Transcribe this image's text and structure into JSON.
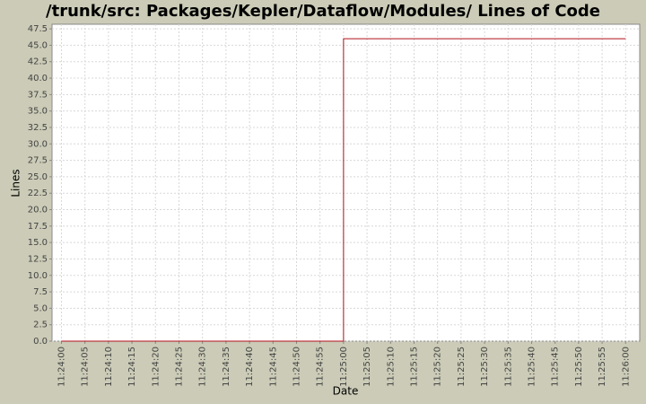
{
  "chart_data": {
    "type": "line",
    "title": "/trunk/src: Packages/Kepler/Dataflow/Modules/ Lines of Code",
    "x_label": "Date",
    "y_label": "Lines",
    "x": [
      "11:24:00",
      "11:25:00",
      "11:25:00",
      "11:26:00"
    ],
    "series": [
      {
        "name": "Lines",
        "color": "#b0121b",
        "values": [
          0,
          0,
          46,
          46
        ]
      }
    ],
    "xlim": [
      "11:23:58",
      "11:26:03"
    ],
    "xticks": [
      "11:24:00",
      "11:24:05",
      "11:24:10",
      "11:24:15",
      "11:24:20",
      "11:24:25",
      "11:24:30",
      "11:24:35",
      "11:24:40",
      "11:24:45",
      "11:24:50",
      "11:24:55",
      "11:25:00",
      "11:25:05",
      "11:25:10",
      "11:25:15",
      "11:25:20",
      "11:25:25",
      "11:25:30",
      "11:25:35",
      "11:25:40",
      "11:25:45",
      "11:25:50",
      "11:25:55",
      "11:26:00"
    ],
    "ylim": [
      0,
      48.2
    ],
    "yticks": [
      {
        "value": 0,
        "label": "0.0"
      },
      {
        "value": 2.5,
        "label": "2.5"
      },
      {
        "value": 5,
        "label": "5.0"
      },
      {
        "value": 7.5,
        "label": "7.5"
      },
      {
        "value": 10,
        "label": "10.0"
      },
      {
        "value": 12.5,
        "label": "12.5"
      },
      {
        "value": 15,
        "label": "15.0"
      },
      {
        "value": 17.5,
        "label": "17.5"
      },
      {
        "value": 20,
        "label": "20.0"
      },
      {
        "value": 22.5,
        "label": "22.5"
      },
      {
        "value": 25,
        "label": "25.0"
      },
      {
        "value": 27.5,
        "label": "27.5"
      },
      {
        "value": 30,
        "label": "30.0"
      },
      {
        "value": 32.5,
        "label": "32.5"
      },
      {
        "value": 35,
        "label": "35.0"
      },
      {
        "value": 37.5,
        "label": "37.5"
      },
      {
        "value": 40,
        "label": "40.0"
      },
      {
        "value": 42.5,
        "label": "42.5"
      },
      {
        "value": 45,
        "label": "45.0"
      },
      {
        "value": 47.5,
        "label": "47.5"
      }
    ],
    "grid": true
  }
}
